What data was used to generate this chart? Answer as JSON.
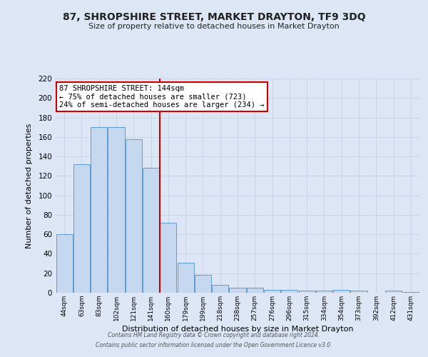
{
  "title": "87, SHROPSHIRE STREET, MARKET DRAYTON, TF9 3DQ",
  "subtitle": "Size of property relative to detached houses in Market Drayton",
  "xlabel": "Distribution of detached houses by size in Market Drayton",
  "ylabel": "Number of detached properties",
  "bar_labels": [
    "44sqm",
    "63sqm",
    "83sqm",
    "102sqm",
    "121sqm",
    "141sqm",
    "160sqm",
    "179sqm",
    "199sqm",
    "218sqm",
    "238sqm",
    "257sqm",
    "276sqm",
    "296sqm",
    "315sqm",
    "334sqm",
    "354sqm",
    "373sqm",
    "392sqm",
    "412sqm",
    "431sqm"
  ],
  "bar_values": [
    60,
    132,
    170,
    170,
    158,
    128,
    72,
    31,
    18,
    8,
    5,
    5,
    3,
    3,
    2,
    2,
    3,
    2,
    0,
    2,
    1
  ],
  "bar_color": "#c5d8f0",
  "bar_edgecolor": "#5b9bd5",
  "vline_x": 5.5,
  "vline_color": "#cc0000",
  "annotation_line1": "87 SHROPSHIRE STREET: 144sqm",
  "annotation_line2": "← 75% of detached houses are smaller (723)",
  "annotation_line3": "24% of semi-detached houses are larger (234) →",
  "annotation_box_color": "#ffffff",
  "annotation_box_edgecolor": "#cc0000",
  "ylim": [
    0,
    220
  ],
  "yticks": [
    0,
    20,
    40,
    60,
    80,
    100,
    120,
    140,
    160,
    180,
    200,
    220
  ],
  "grid_color": "#c8d4e8",
  "background_color": "#dce6f5",
  "plot_bg_color": "#dce6f5",
  "footer_line1": "Contains HM Land Registry data © Crown copyright and database right 2024.",
  "footer_line2": "Contains public sector information licensed under the Open Government Licence v3.0."
}
